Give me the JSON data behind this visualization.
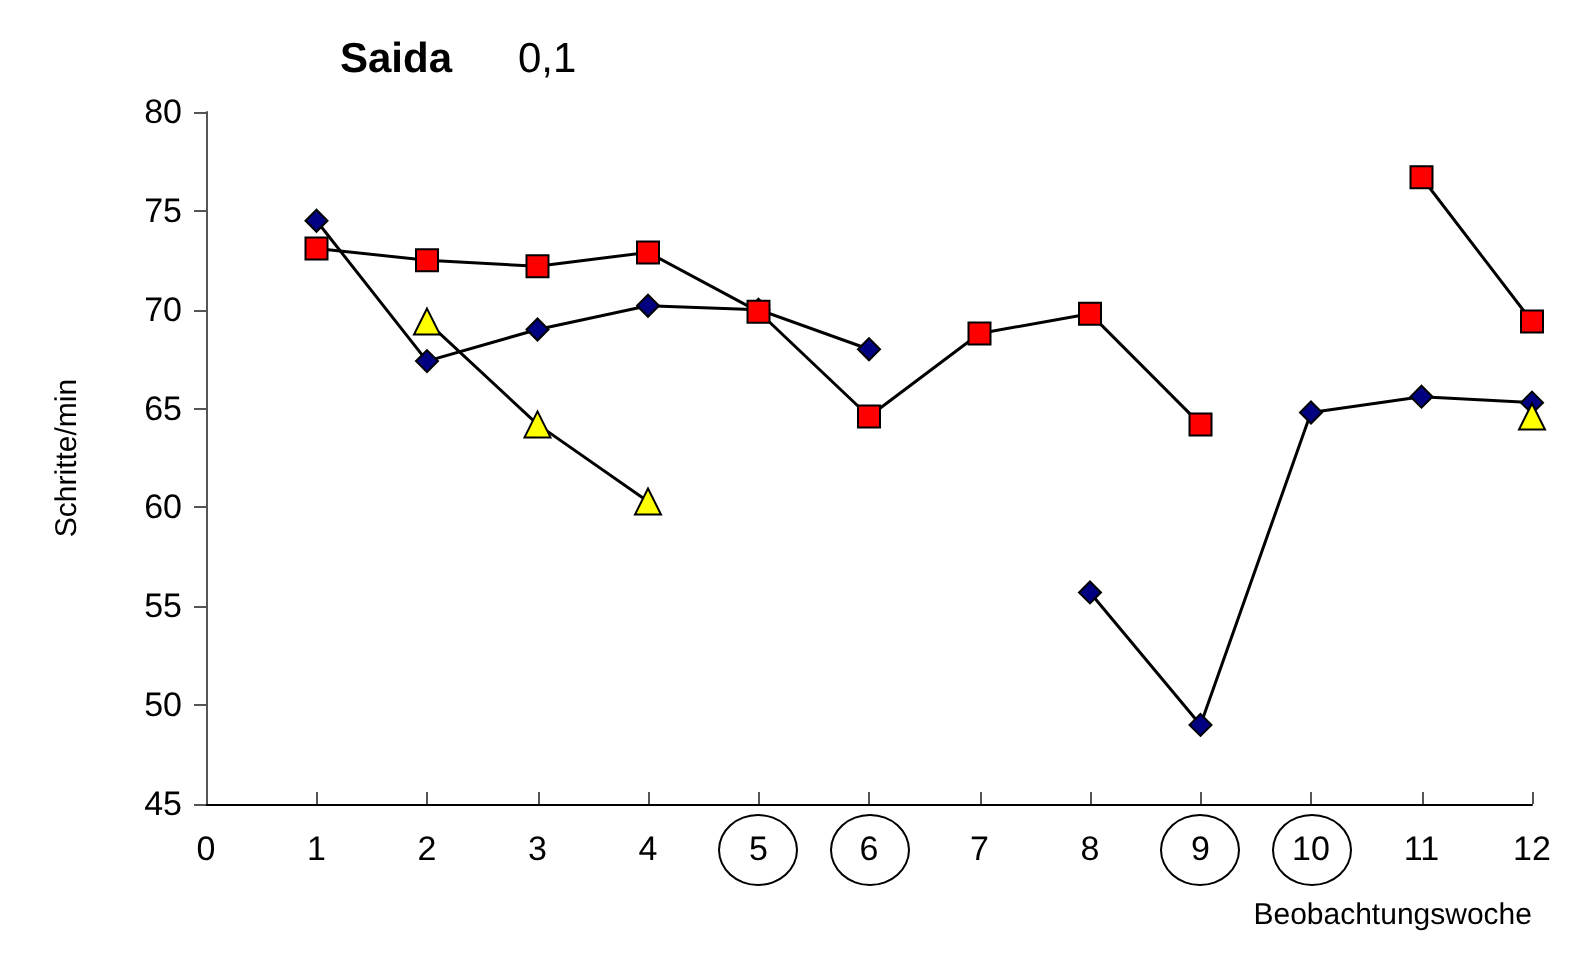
{
  "chart_data": {
    "type": "line",
    "title": "Saida",
    "subtitle": "0,1",
    "xlabel": "Beobachtungswoche",
    "ylabel": "Schritte/min",
    "x": [
      1,
      2,
      3,
      4,
      5,
      6,
      7,
      8,
      9,
      10,
      11,
      12
    ],
    "series": [
      {
        "color": "#000080",
        "marker": "diamond",
        "values": [
          74.5,
          67.4,
          69.0,
          70.2,
          70.0,
          68.0,
          null,
          55.7,
          49.0,
          64.8,
          65.6,
          65.3
        ]
      },
      {
        "color": "#ff0000",
        "marker": "square",
        "values": [
          73.1,
          72.5,
          72.2,
          72.9,
          69.9,
          64.6,
          68.8,
          69.8,
          64.2,
          null,
          76.7,
          69.4
        ]
      },
      {
        "color": "#ffff00",
        "marker": "triangle",
        "values": [
          null,
          69.4,
          64.2,
          60.3,
          null,
          null,
          null,
          null,
          null,
          null,
          null,
          64.6
        ]
      }
    ],
    "xlim": [
      0,
      12
    ],
    "xticks": [
      0,
      1,
      2,
      3,
      4,
      5,
      6,
      7,
      8,
      9,
      10,
      11,
      12
    ],
    "ylim": [
      45,
      80
    ],
    "yticks": [
      45,
      50,
      55,
      60,
      65,
      70,
      75,
      80
    ],
    "grid": false,
    "line_style": "solid"
  }
}
